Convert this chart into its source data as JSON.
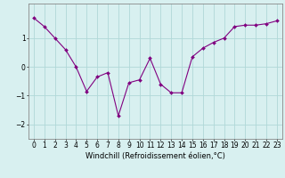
{
  "x": [
    0,
    1,
    2,
    3,
    4,
    5,
    6,
    7,
    8,
    9,
    10,
    11,
    12,
    13,
    14,
    15,
    16,
    17,
    18,
    19,
    20,
    21,
    22,
    23
  ],
  "y": [
    1.7,
    1.4,
    1.0,
    0.6,
    0.0,
    -0.85,
    -0.35,
    -0.2,
    -1.7,
    -0.55,
    -0.45,
    0.3,
    -0.6,
    -0.9,
    -0.9,
    0.35,
    0.65,
    0.85,
    1.0,
    1.4,
    1.45,
    1.45,
    1.5,
    1.6
  ],
  "line_color": "#800080",
  "marker": "D",
  "marker_size": 2,
  "bg_color": "#d8f0f0",
  "grid_color": "#b0d8d8",
  "xlabel": "Windchill (Refroidissement éolien,°C)",
  "xlabel_fontsize": 6,
  "tick_fontsize": 5.5,
  "ylim": [
    -2.5,
    2.2
  ],
  "yticks": [
    -2,
    -1,
    0,
    1
  ],
  "xlim": [
    -0.5,
    23.5
  ],
  "figsize": [
    3.2,
    2.0
  ],
  "dpi": 100
}
